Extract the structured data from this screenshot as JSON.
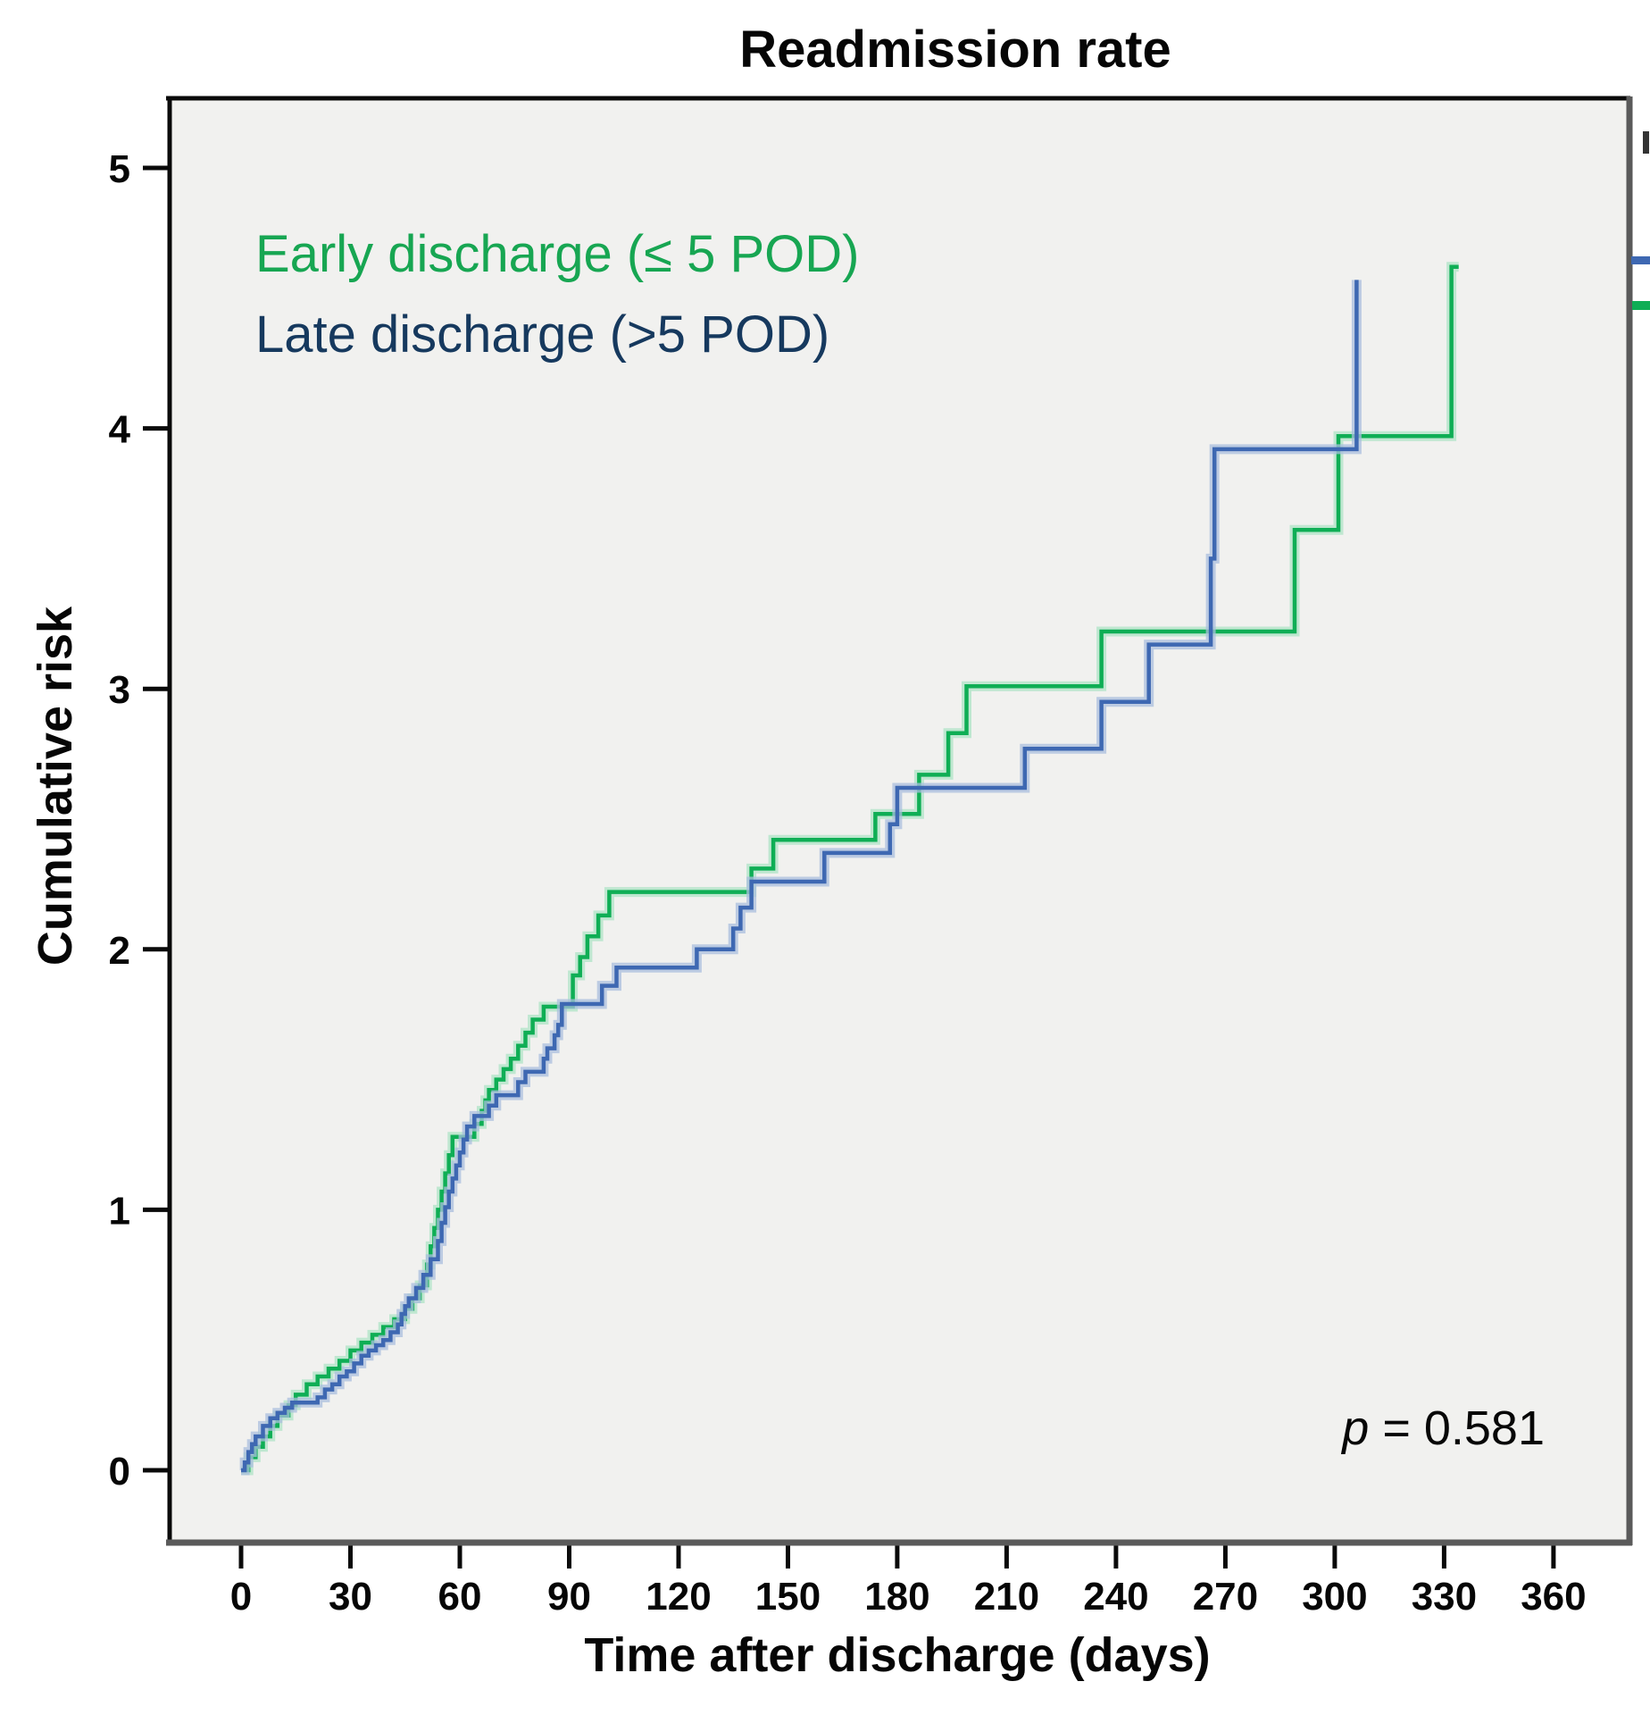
{
  "title": "Readmission rate",
  "annotation": {
    "p_symbol": "p",
    "p_rest": " = 0.581"
  },
  "legend": {
    "entries": [
      {
        "label": "Early discharge (≤ 5 POD)",
        "color": "#17a652"
      },
      {
        "label": "Late discharge (>5 POD)",
        "color": "#16395e"
      }
    ]
  },
  "axes": {
    "x": {
      "label": "Time after discharge (days)",
      "ticks": [
        0,
        30,
        60,
        90,
        120,
        150,
        180,
        210,
        240,
        270,
        300,
        330,
        360
      ],
      "lim": [
        0,
        360
      ]
    },
    "y": {
      "label": "Cumulative risk",
      "ticks": [
        0,
        1,
        2,
        3,
        4,
        5
      ],
      "lim": [
        0,
        5.3
      ]
    }
  },
  "chart_data": {
    "type": "line",
    "subtype": "step-after",
    "title": "Readmission rate",
    "xlabel": "Time after discharge (days)",
    "ylabel": "Cumulative risk",
    "xlim": [
      0,
      360
    ],
    "ylim": [
      0,
      5.3
    ],
    "grid": false,
    "legend_position": "upper-left-inside",
    "p_value": "0.581",
    "plot_bg": "#f1f1ef",
    "border_dark": "#0a0a0a",
    "border_gray": "#5a5a5a",
    "series": [
      {
        "name": "Early discharge (≤ 5 POD)",
        "color": "#0fae55",
        "halo": "#aee3c6",
        "points": [
          [
            0,
            0
          ],
          [
            2,
            0.05
          ],
          [
            4,
            0.09
          ],
          [
            6,
            0.13
          ],
          [
            8,
            0.17
          ],
          [
            10,
            0.21
          ],
          [
            13,
            0.25
          ],
          [
            15,
            0.29
          ],
          [
            18,
            0.33
          ],
          [
            21,
            0.36
          ],
          [
            24,
            0.39
          ],
          [
            27,
            0.42
          ],
          [
            30,
            0.46
          ],
          [
            33,
            0.49
          ],
          [
            36,
            0.52
          ],
          [
            39,
            0.55
          ],
          [
            42,
            0.58
          ],
          [
            45,
            0.62
          ],
          [
            47,
            0.66
          ],
          [
            49,
            0.71
          ],
          [
            51,
            0.79
          ],
          [
            52,
            0.86
          ],
          [
            53,
            0.93
          ],
          [
            54,
            1.0
          ],
          [
            55,
            1.07
          ],
          [
            56,
            1.14
          ],
          [
            57,
            1.21
          ],
          [
            58,
            1.28
          ],
          [
            64,
            1.33
          ],
          [
            66,
            1.38
          ],
          [
            67,
            1.42
          ],
          [
            68,
            1.46
          ],
          [
            70,
            1.5
          ],
          [
            72,
            1.54
          ],
          [
            74,
            1.58
          ],
          [
            76,
            1.63
          ],
          [
            78,
            1.68
          ],
          [
            80,
            1.73
          ],
          [
            83,
            1.78
          ],
          [
            91,
            1.9
          ],
          [
            93,
            1.97
          ],
          [
            95,
            2.05
          ],
          [
            98,
            2.13
          ],
          [
            101,
            2.22
          ],
          [
            140,
            2.31
          ],
          [
            146,
            2.42
          ],
          [
            174,
            2.52
          ],
          [
            186,
            2.67
          ],
          [
            194,
            2.83
          ],
          [
            199,
            3.01
          ],
          [
            236,
            3.22
          ],
          [
            289,
            3.61
          ],
          [
            301,
            3.97
          ],
          [
            332,
            4.62
          ],
          [
            334,
            4.62
          ]
        ]
      },
      {
        "name": "Late discharge (>5 POD)",
        "color": "#3e68b2",
        "halo": "#a9bedd",
        "points": [
          [
            0,
            0
          ],
          [
            1,
            0.03
          ],
          [
            2,
            0.07
          ],
          [
            3,
            0.1
          ],
          [
            4,
            0.13
          ],
          [
            6,
            0.17
          ],
          [
            8,
            0.2
          ],
          [
            10,
            0.22
          ],
          [
            12,
            0.24
          ],
          [
            14,
            0.26
          ],
          [
            21,
            0.28
          ],
          [
            23,
            0.31
          ],
          [
            25,
            0.33
          ],
          [
            27,
            0.36
          ],
          [
            29,
            0.38
          ],
          [
            31,
            0.41
          ],
          [
            33,
            0.44
          ],
          [
            35,
            0.46
          ],
          [
            37,
            0.48
          ],
          [
            39,
            0.5
          ],
          [
            41,
            0.53
          ],
          [
            43,
            0.56
          ],
          [
            44,
            0.6
          ],
          [
            45,
            0.63
          ],
          [
            46,
            0.66
          ],
          [
            48,
            0.7
          ],
          [
            50,
            0.75
          ],
          [
            52,
            0.81
          ],
          [
            54,
            0.88
          ],
          [
            55,
            0.95
          ],
          [
            56,
            1.01
          ],
          [
            57,
            1.07
          ],
          [
            58,
            1.12
          ],
          [
            59,
            1.17
          ],
          [
            60,
            1.22
          ],
          [
            61,
            1.27
          ],
          [
            62,
            1.32
          ],
          [
            64,
            1.36
          ],
          [
            68,
            1.4
          ],
          [
            70,
            1.44
          ],
          [
            76,
            1.49
          ],
          [
            78,
            1.53
          ],
          [
            83,
            1.58
          ],
          [
            84,
            1.62
          ],
          [
            86,
            1.67
          ],
          [
            87,
            1.71
          ],
          [
            88,
            1.79
          ],
          [
            99,
            1.86
          ],
          [
            103,
            1.93
          ],
          [
            125,
            2.0
          ],
          [
            135,
            2.08
          ],
          [
            137,
            2.16
          ],
          [
            140,
            2.26
          ],
          [
            160,
            2.37
          ],
          [
            178,
            2.48
          ],
          [
            180,
            2.62
          ],
          [
            215,
            2.77
          ],
          [
            236,
            2.95
          ],
          [
            249,
            3.17
          ],
          [
            266,
            3.5
          ],
          [
            267,
            3.92
          ],
          [
            306,
            4.57
          ]
        ]
      }
    ]
  },
  "artifacts": {
    "dark_mark_color": "#333333",
    "blue_dash_color": "#3e68b2",
    "green_dash_color": "#0fae55"
  }
}
